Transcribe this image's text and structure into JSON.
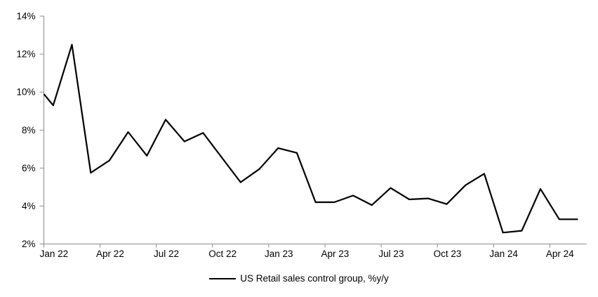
{
  "chart_data": {
    "type": "line",
    "title": "",
    "legend": {
      "label": "US Retail sales control group, %y/y",
      "position": "bottom-center",
      "swatch": "line"
    },
    "categories": [
      "Jan 22",
      "Feb 22",
      "Mar 22",
      "Apr 22",
      "May 22",
      "Jun 22",
      "Jul 22",
      "Aug 22",
      "Sep 22",
      "Oct 22",
      "Nov 22",
      "Dec 22",
      "Jan 23",
      "Feb 23",
      "Mar 23",
      "Apr 23",
      "May 23",
      "Jun 23",
      "Jul 23",
      "Aug 23",
      "Sep 23",
      "Oct 23",
      "Nov 23",
      "Dec 23",
      "Jan 24",
      "Feb 24",
      "Mar 24",
      "Apr 24",
      "May 24"
    ],
    "series": [
      {
        "name": "US Retail sales control group, %y/y",
        "color": "#000000",
        "values": [
          9.3,
          12.5,
          5.75,
          6.4,
          7.9,
          6.65,
          8.55,
          7.4,
          7.85,
          6.55,
          5.25,
          5.95,
          7.05,
          6.8,
          4.2,
          4.2,
          4.55,
          4.05,
          4.95,
          4.35,
          4.4,
          4.1,
          5.1,
          5.7,
          2.6,
          2.7,
          4.9,
          3.3,
          3.3
        ]
      }
    ],
    "line_value_at_left_axis": 9.9,
    "y_axis": {
      "unit": "%",
      "min": 2,
      "max": 14,
      "tick_step": 2,
      "tick_labels": [
        "2%",
        "4%",
        "6%",
        "8%",
        "10%",
        "12%",
        "14%"
      ]
    },
    "x_axis": {
      "tick_interval_months": 3,
      "tick_labels": [
        "Jan 22",
        "Apr 22",
        "Jul 22",
        "Oct 22",
        "Jan 23",
        "Apr 23",
        "Jul 23",
        "Oct 23",
        "Jan 24",
        "Apr 24"
      ]
    },
    "grid": false,
    "ylim": [
      2,
      14
    ],
    "colors": {
      "line": "#000000",
      "axis": "#8c8c8c",
      "text": "#000000",
      "background": "#ffffff"
    }
  }
}
